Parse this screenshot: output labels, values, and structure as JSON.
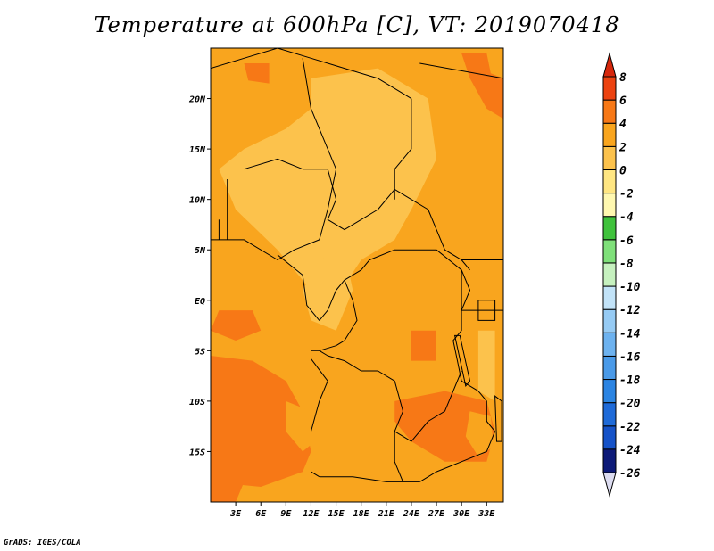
{
  "title": "Temperature at 600hPa [C], VT: 2019070418",
  "footer": "GrADS: IGES/COLA",
  "map": {
    "lon_range": [
      0,
      35
    ],
    "lat_range": [
      -20,
      25
    ],
    "lon_ticks": [
      {
        "value": 3,
        "label": "3E"
      },
      {
        "value": 6,
        "label": "6E"
      },
      {
        "value": 9,
        "label": "9E"
      },
      {
        "value": 12,
        "label": "12E"
      },
      {
        "value": 15,
        "label": "15E"
      },
      {
        "value": 18,
        "label": "18E"
      },
      {
        "value": 21,
        "label": "21E"
      },
      {
        "value": 24,
        "label": "24E"
      },
      {
        "value": 27,
        "label": "27E"
      },
      {
        "value": 30,
        "label": "30E"
      },
      {
        "value": 33,
        "label": "33E"
      }
    ],
    "lat_ticks": [
      {
        "value": 20,
        "label": "20N"
      },
      {
        "value": 15,
        "label": "15N"
      },
      {
        "value": 10,
        "label": "10N"
      },
      {
        "value": 5,
        "label": "5N"
      },
      {
        "value": 0,
        "label": "EQ"
      },
      {
        "value": -5,
        "label": "5S"
      },
      {
        "value": -10,
        "label": "10S"
      },
      {
        "value": -15,
        "label": "15S"
      }
    ],
    "field_regions": [
      {
        "name": "sahel-light-band",
        "level": 2,
        "lonlat": [
          [
            12,
            22
          ],
          [
            20,
            23
          ],
          [
            26,
            20
          ],
          [
            27,
            14
          ],
          [
            24,
            9
          ],
          [
            22,
            6
          ],
          [
            18,
            4
          ],
          [
            14,
            -1
          ],
          [
            12,
            1
          ],
          [
            8,
            5
          ],
          [
            3,
            9
          ],
          [
            1,
            13
          ],
          [
            4,
            15
          ],
          [
            9,
            17
          ],
          [
            12,
            19
          ]
        ]
      },
      {
        "name": "congo-light-patch",
        "level": 2,
        "lonlat": [
          [
            13,
            4
          ],
          [
            16,
            5
          ],
          [
            17,
            1
          ],
          [
            15,
            -3
          ],
          [
            12,
            -2
          ],
          [
            11,
            1
          ]
        ]
      },
      {
        "name": "rift-light-strip",
        "level": 2,
        "lonlat": [
          [
            32,
            -3
          ],
          [
            34,
            -3
          ],
          [
            34,
            -10
          ],
          [
            32,
            -9
          ]
        ]
      },
      {
        "name": "south-atlantic-warm",
        "level": 6,
        "lonlat": [
          [
            0,
            -5.5
          ],
          [
            5,
            -6
          ],
          [
            9,
            -8
          ],
          [
            11,
            -11
          ],
          [
            12,
            -15
          ],
          [
            11,
            -17
          ],
          [
            6,
            -18.5
          ],
          [
            0,
            -18
          ]
        ]
      },
      {
        "name": "south-atlantic-core",
        "level": 7,
        "lonlat": [
          [
            9,
            -10
          ],
          [
            12,
            -11
          ],
          [
            12.5,
            -14
          ],
          [
            11,
            -15
          ],
          [
            9,
            -13
          ]
        ]
      },
      {
        "name": "zambia-warm",
        "level": 6,
        "lonlat": [
          [
            22,
            -10
          ],
          [
            28,
            -9
          ],
          [
            33,
            -10
          ],
          [
            34,
            -13
          ],
          [
            33,
            -16
          ],
          [
            28,
            -16
          ],
          [
            24,
            -14
          ],
          [
            22,
            -12
          ]
        ]
      },
      {
        "name": "zambia-core",
        "level": 7,
        "lonlat": [
          [
            31,
            -11
          ],
          [
            33.5,
            -11.5
          ],
          [
            33.8,
            -14.5
          ],
          [
            32,
            -15.5
          ],
          [
            30.5,
            -13.5
          ]
        ]
      },
      {
        "name": "gulf-warm-1",
        "level": 6,
        "lonlat": [
          [
            1,
            -1
          ],
          [
            5,
            -1
          ],
          [
            6,
            -3
          ],
          [
            3,
            -4
          ],
          [
            0,
            -3
          ]
        ]
      },
      {
        "name": "ne-corner-warm",
        "level": 6,
        "lonlat": [
          [
            30,
            24.5
          ],
          [
            35,
            24.5
          ],
          [
            35,
            18
          ],
          [
            33,
            19
          ],
          [
            31,
            22
          ]
        ]
      },
      {
        "name": "ne-corner-core",
        "level": 7,
        "lonlat": [
          [
            33,
            24.5
          ],
          [
            35,
            24.5
          ],
          [
            35,
            22
          ],
          [
            33.5,
            22.5
          ]
        ]
      },
      {
        "name": "nw-patch",
        "level": 6,
        "lonlat": [
          [
            4,
            23.5
          ],
          [
            7,
            23.5
          ],
          [
            7,
            21.5
          ],
          [
            4.5,
            21.8
          ]
        ]
      },
      {
        "name": "sw-corner-warm",
        "level": 6,
        "lonlat": [
          [
            0,
            -18
          ],
          [
            4,
            -18
          ],
          [
            3,
            -20
          ],
          [
            0,
            -20
          ]
        ]
      },
      {
        "name": "east-congo-warm",
        "level": 6,
        "lonlat": [
          [
            24,
            -3
          ],
          [
            27,
            -3
          ],
          [
            27,
            -6
          ],
          [
            24,
            -6
          ]
        ]
      }
    ],
    "borders": [
      [
        [
          0,
          23
        ],
        [
          4,
          24
        ],
        [
          8,
          25
        ],
        [
          12,
          24
        ],
        [
          16,
          23
        ],
        [
          20,
          22
        ],
        [
          24,
          20
        ]
      ],
      [
        [
          11,
          24
        ],
        [
          12,
          19
        ],
        [
          14,
          15
        ],
        [
          15,
          13
        ],
        [
          14,
          9
        ],
        [
          13,
          6
        ],
        [
          10,
          5
        ],
        [
          8,
          4
        ],
        [
          4,
          6
        ],
        [
          0,
          6
        ]
      ],
      [
        [
          4,
          13
        ],
        [
          8,
          14
        ],
        [
          11,
          13
        ],
        [
          14,
          13
        ],
        [
          15,
          10
        ],
        [
          14,
          8
        ],
        [
          16,
          7
        ],
        [
          18,
          8
        ],
        [
          20,
          9
        ],
        [
          22,
          11
        ],
        [
          24,
          10
        ],
        [
          26,
          9
        ],
        [
          28,
          5
        ],
        [
          30,
          4
        ],
        [
          31,
          3
        ]
      ],
      [
        [
          24,
          20
        ],
        [
          24,
          15
        ],
        [
          22,
          13
        ],
        [
          22,
          10
        ]
      ],
      [
        [
          25,
          23.5
        ],
        [
          35,
          22
        ]
      ],
      [
        [
          8,
          4.5
        ],
        [
          11,
          2.5
        ],
        [
          11.5,
          -0.5
        ],
        [
          13,
          -2
        ],
        [
          14,
          -1
        ],
        [
          15,
          1
        ],
        [
          16,
          2
        ],
        [
          18,
          3
        ],
        [
          19,
          4
        ],
        [
          22,
          5
        ],
        [
          25,
          5
        ],
        [
          27,
          5
        ],
        [
          30,
          3
        ],
        [
          31,
          1
        ],
        [
          30,
          -1
        ]
      ],
      [
        [
          16,
          2
        ],
        [
          17,
          0
        ],
        [
          17.5,
          -2
        ],
        [
          16,
          -4
        ],
        [
          15,
          -4.5
        ],
        [
          13,
          -5
        ]
      ],
      [
        [
          12,
          -5
        ],
        [
          13,
          -5
        ],
        [
          14,
          -5.5
        ],
        [
          16,
          -6
        ],
        [
          18,
          -7
        ],
        [
          20,
          -7
        ],
        [
          22,
          -8
        ],
        [
          23,
          -11
        ],
        [
          22,
          -13
        ],
        [
          24,
          -14
        ],
        [
          26,
          -12
        ],
        [
          28,
          -11
        ],
        [
          29,
          -9
        ],
        [
          30,
          -7
        ]
      ],
      [
        [
          12,
          -5.8
        ],
        [
          14,
          -8
        ],
        [
          13,
          -10
        ],
        [
          12,
          -13
        ],
        [
          12,
          -17
        ],
        [
          13,
          -17.5
        ]
      ],
      [
        [
          13,
          -17.5
        ],
        [
          17,
          -17.5
        ],
        [
          21,
          -18
        ],
        [
          23,
          -18
        ],
        [
          25,
          -18
        ]
      ],
      [
        [
          22,
          -13
        ],
        [
          22,
          -16
        ],
        [
          23,
          -18
        ]
      ],
      [
        [
          25,
          -18
        ],
        [
          27,
          -17
        ],
        [
          30,
          -16
        ],
        [
          33,
          -15
        ],
        [
          34,
          -13
        ]
      ],
      [
        [
          32,
          -9
        ],
        [
          33,
          -10
        ],
        [
          33,
          -12
        ],
        [
          34,
          -13
        ]
      ],
      [
        [
          30,
          -1
        ],
        [
          30,
          -3
        ],
        [
          29,
          -4
        ],
        [
          29.5,
          -6
        ],
        [
          30,
          -8
        ],
        [
          32,
          -9
        ]
      ],
      [
        [
          30,
          4
        ],
        [
          32,
          4
        ],
        [
          34,
          4
        ],
        [
          35,
          4
        ]
      ],
      [
        [
          30,
          -1
        ],
        [
          33,
          -1
        ],
        [
          34,
          -1
        ],
        [
          35,
          -1
        ]
      ],
      [
        [
          30,
          3
        ],
        [
          30,
          -1
        ]
      ],
      [
        [
          1,
          8
        ],
        [
          1,
          6
        ]
      ],
      [
        [
          2,
          12
        ],
        [
          2,
          6
        ]
      ]
    ],
    "lakes": [
      [
        [
          32,
          0
        ],
        [
          34,
          0
        ],
        [
          34,
          -2
        ],
        [
          32,
          -2
        ]
      ],
      [
        [
          29.2,
          -3.5
        ],
        [
          29.8,
          -3.5
        ],
        [
          31,
          -8
        ],
        [
          30.5,
          -8.5
        ]
      ],
      [
        [
          34,
          -9.5
        ],
        [
          34.8,
          -10
        ],
        [
          34.8,
          -14
        ],
        [
          34.2,
          -14
        ]
      ]
    ]
  },
  "colorbar": {
    "bands": [
      {
        "level": -26,
        "color": "#0d1a78"
      },
      {
        "level": -24,
        "color": "#0c3ba8"
      },
      {
        "level": -22,
        "color": "#1552c8"
      },
      {
        "level": -20,
        "color": "#1e6ad8"
      },
      {
        "level": -18,
        "color": "#2b84e2"
      },
      {
        "level": -16,
        "color": "#4a9ae8"
      },
      {
        "level": -14,
        "color": "#6db2ef"
      },
      {
        "level": -12,
        "color": "#96cbf4"
      },
      {
        "level": -10,
        "color": "#c2e3f8"
      },
      {
        "level": -8,
        "color": "#c6f1bf"
      },
      {
        "level": -6,
        "color": "#7fe07a"
      },
      {
        "level": -4,
        "color": "#3fc23c"
      },
      {
        "level": -2,
        "color": "#fff8b0"
      },
      {
        "level": 0,
        "color": "#ffe682"
      },
      {
        "level": 2,
        "color": "#fcc24c"
      },
      {
        "level": 4,
        "color": "#f9a51e"
      },
      {
        "level": 6,
        "color": "#f77816"
      },
      {
        "level": 8,
        "color": "#ec4210"
      },
      {
        "level": 10,
        "color": "#d6270c"
      }
    ],
    "labels": [
      {
        "value": 8,
        "label": "8"
      },
      {
        "value": 6,
        "label": "6"
      },
      {
        "value": 4,
        "label": "4"
      },
      {
        "value": 2,
        "label": "2"
      },
      {
        "value": 0,
        "label": "0"
      },
      {
        "value": -2,
        "label": "-2"
      },
      {
        "value": -4,
        "label": "-4"
      },
      {
        "value": -6,
        "label": "-6"
      },
      {
        "value": -8,
        "label": "-8"
      },
      {
        "value": -10,
        "label": "-10"
      },
      {
        "value": -12,
        "label": "-12"
      },
      {
        "value": -14,
        "label": "-14"
      },
      {
        "value": -16,
        "label": "-16"
      },
      {
        "value": -18,
        "label": "-18"
      },
      {
        "value": -20,
        "label": "-20"
      },
      {
        "value": -22,
        "label": "-22"
      },
      {
        "value": -24,
        "label": "-24"
      },
      {
        "value": -26,
        "label": "-26"
      }
    ],
    "background_level": 4,
    "border_color": "#000000"
  }
}
